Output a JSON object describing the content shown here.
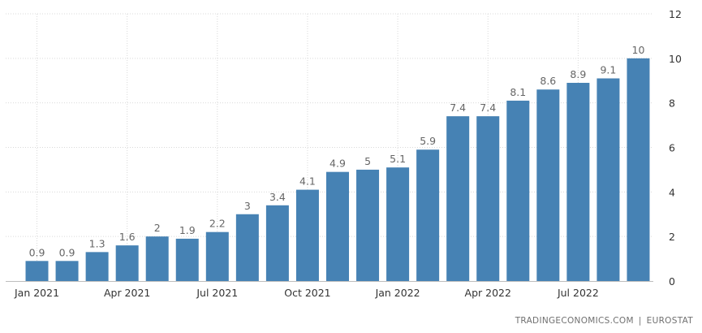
{
  "chart_data": {
    "type": "bar",
    "title": "",
    "xlabel": "",
    "ylabel": "",
    "categories": [
      "Jan 2021",
      "Feb 2021",
      "Mar 2021",
      "Apr 2021",
      "May 2021",
      "Jun 2021",
      "Jul 2021",
      "Aug 2021",
      "Sep 2021",
      "Oct 2021",
      "Nov 2021",
      "Dec 2021",
      "Jan 2022",
      "Feb 2022",
      "Mar 2022",
      "Apr 2022",
      "May 2022",
      "Jun 2022",
      "Jul 2022",
      "Aug 2022",
      "Sep 2022"
    ],
    "values": [
      0.9,
      0.9,
      1.3,
      1.6,
      2,
      1.9,
      2.2,
      3,
      3.4,
      4.1,
      4.9,
      5,
      5.1,
      5.9,
      7.4,
      7.4,
      8.1,
      8.6,
      8.9,
      9.1,
      10
    ],
    "value_labels": [
      "0.9",
      "0.9",
      "1.3",
      "1.6",
      "2",
      "1.9",
      "2.2",
      "3",
      "3.4",
      "4.1",
      "4.9",
      "5",
      "5.1",
      "5.9",
      "7.4",
      "7.4",
      "8.1",
      "8.6",
      "8.9",
      "9.1",
      "10"
    ],
    "x_tick_labels": [
      {
        "index": 0,
        "label": "Jan 2021"
      },
      {
        "index": 3,
        "label": "Apr 2021"
      },
      {
        "index": 6,
        "label": "Jul 2021"
      },
      {
        "index": 9,
        "label": "Oct 2021"
      },
      {
        "index": 12,
        "label": "Jan 2022"
      },
      {
        "index": 15,
        "label": "Apr 2022"
      },
      {
        "index": 18,
        "label": "Jul 2022"
      }
    ],
    "y_ticks": [
      "0",
      "2",
      "4",
      "6",
      "8",
      "10",
      "12"
    ],
    "ylim": [
      0,
      12
    ],
    "y_axis_side": "right",
    "grid": true,
    "bar_color": "#4682b4",
    "label_color": "#666666"
  },
  "credit": {
    "source_left": "TRADINGECONOMICS.COM",
    "separator": "|",
    "source_right": "EUROSTAT"
  }
}
